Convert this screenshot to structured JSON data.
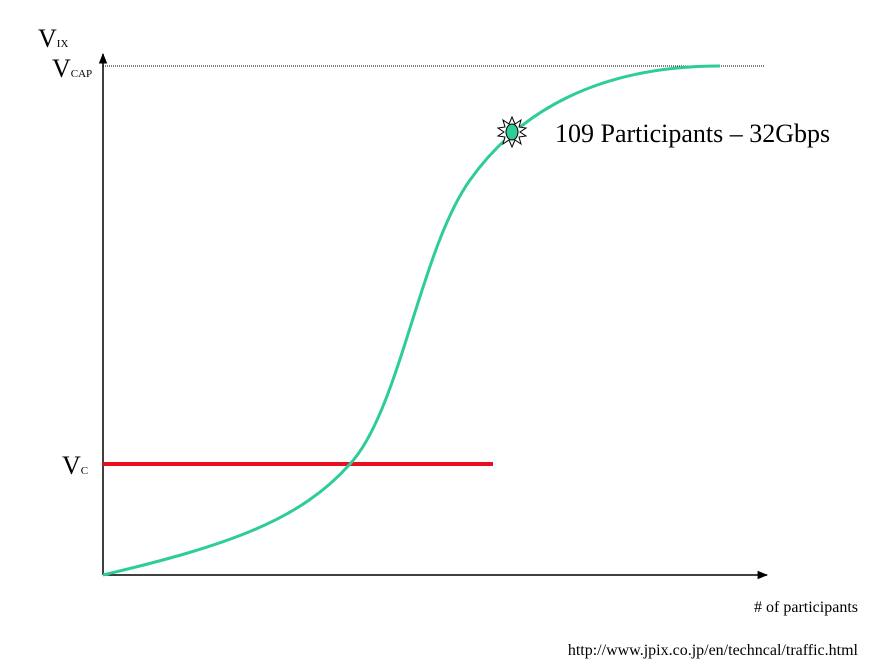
{
  "y_axis": {
    "label": {
      "main": "V",
      "sub": "IX"
    }
  },
  "levels": {
    "cap": {
      "main": "V",
      "sub": "CAP"
    },
    "c": {
      "main": "V",
      "sub": "C"
    }
  },
  "annotation": "109 Participants – 32Gbps",
  "x_axis": {
    "label": "# of participants"
  },
  "source": "http://www.jpix.co.jp/en/techncal/traffic.html"
}
